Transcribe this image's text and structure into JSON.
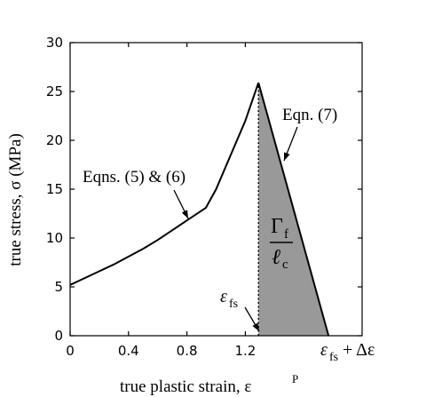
{
  "chart_data": {
    "type": "line",
    "xlabel": "true plastic strain, ε",
    "xlabel_sup": "P",
    "ylabel": "true stress, σ  (MPa)",
    "xlim": [
      0,
      2.0
    ],
    "ylim": [
      0,
      30
    ],
    "x_ticks": [
      0,
      0.4,
      0.8,
      1.2
    ],
    "x_tick_labels": [
      "0",
      "0.4",
      "0.8",
      "1.2"
    ],
    "y_ticks": [
      0,
      5,
      10,
      15,
      20,
      25,
      30
    ],
    "y_tick_labels": [
      "0",
      "5",
      "10",
      "15",
      "20",
      "25",
      "30"
    ],
    "grid": false,
    "series": [
      {
        "name": "",
        "x": [
          0,
          0.1,
          0.2,
          0.3,
          0.4,
          0.5,
          0.6,
          0.7,
          0.8,
          0.93,
          1.0,
          1.1,
          1.2,
          1.29
        ],
        "y": [
          5.2,
          5.9,
          6.6,
          7.3,
          8.1,
          8.9,
          9.8,
          10.8,
          11.8,
          13.1,
          15.0,
          18.5,
          22.0,
          25.9
        ]
      },
      {
        "name": "",
        "x": [
          1.29,
          1.77
        ],
        "y": [
          25.9,
          0
        ]
      }
    ],
    "vertical_dotted_line": {
      "x": 1.29,
      "y_from": 0,
      "y_to": 25.9
    },
    "shaded_region": {
      "vertices": [
        [
          1.29,
          0
        ],
        [
          1.29,
          25.9
        ],
        [
          1.77,
          0
        ]
      ],
      "color": "#999999"
    },
    "annotations": {
      "eqns_5_6": "Eqns. (5) & (6)",
      "eqn_7": "Eqn. (7)",
      "gamma": "Γ",
      "gamma_sub": "f",
      "ell": "ℓ",
      "ell_sub": "c",
      "eps": "ε",
      "eps_sub": "fs",
      "x_end_label_eps": "ε",
      "x_end_label_sub": "fs",
      "x_end_label_rest": " + Δε"
    }
  }
}
